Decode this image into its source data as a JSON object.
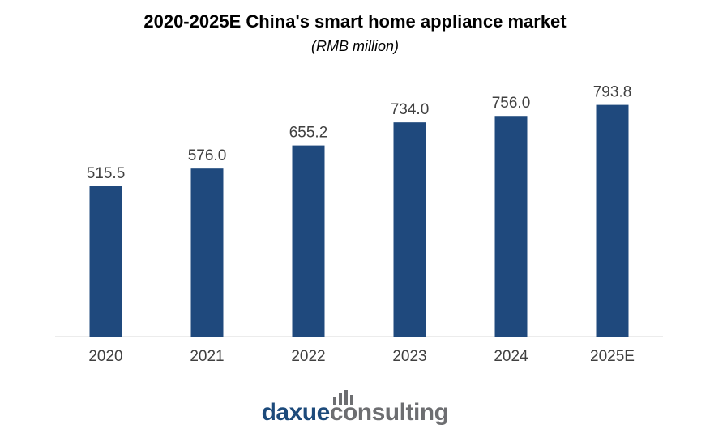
{
  "chart_data": {
    "type": "bar",
    "title": "2020-2025E China's smart home appliance market",
    "subtitle": "(RMB million)",
    "categories": [
      "2020",
      "2021",
      "2022",
      "2023",
      "2024",
      "2025E"
    ],
    "values": [
      515.5,
      576.0,
      655.2,
      734.0,
      756.0,
      793.8
    ],
    "value_labels": [
      "515.5",
      "576.0",
      "655.2",
      "734.0",
      "756.0",
      "793.8"
    ],
    "bar_color": "#1f497d",
    "ylim": [
      0,
      850
    ],
    "grid": false,
    "legend": "none"
  },
  "logo": {
    "part1": "daxue",
    "part2": "consulting",
    "color1": "#1c4a7b",
    "color2": "#6d6e71"
  }
}
